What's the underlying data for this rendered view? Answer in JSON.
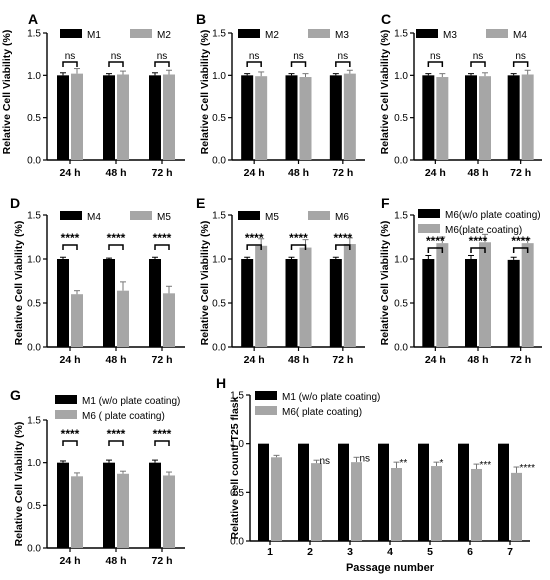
{
  "colors": {
    "black_bar": "#000000",
    "gray_bar": "#a6a6a6",
    "axis": "#000000"
  },
  "chart_data": [
    {
      "panel": "A",
      "type": "bar",
      "categories": [
        "24 h",
        "48 h",
        "72 h"
      ],
      "ylabel": "Relative Cell Viability (%)",
      "ylim": [
        0,
        1.5
      ],
      "yticks": [
        "0.0",
        "0.5",
        "1.0",
        "1.5"
      ],
      "series": [
        {
          "name": "M1",
          "color": "#000000",
          "values": [
            1.0,
            1.0,
            1.0
          ],
          "errors": [
            0.03,
            0.02,
            0.03
          ]
        },
        {
          "name": "M2",
          "color": "#a6a6a6",
          "values": [
            1.02,
            1.01,
            1.01
          ],
          "errors": [
            0.06,
            0.04,
            0.05
          ]
        }
      ],
      "significance": [
        "ns",
        "ns",
        "ns"
      ],
      "legend": "top"
    },
    {
      "panel": "B",
      "type": "bar",
      "categories": [
        "24 h",
        "48 h",
        "72 h"
      ],
      "ylabel": "Relative Cell Viability (%)",
      "ylim": [
        0,
        1.5
      ],
      "yticks": [
        "0.0",
        "0.5",
        "1.0",
        "1.5"
      ],
      "series": [
        {
          "name": "M2",
          "color": "#000000",
          "values": [
            1.0,
            1.0,
            1.0
          ],
          "errors": [
            0.02,
            0.02,
            0.02
          ]
        },
        {
          "name": "M3",
          "color": "#a6a6a6",
          "values": [
            0.99,
            0.98,
            1.02
          ],
          "errors": [
            0.05,
            0.04,
            0.04
          ]
        }
      ],
      "significance": [
        "ns",
        "ns",
        "ns"
      ],
      "legend": "top"
    },
    {
      "panel": "C",
      "type": "bar",
      "categories": [
        "24 h",
        "48 h",
        "72 h"
      ],
      "ylabel": "Relative Cell Viability (%)",
      "ylim": [
        0,
        1.5
      ],
      "yticks": [
        "0.0",
        "0.5",
        "1.0",
        "1.5"
      ],
      "series": [
        {
          "name": "M3",
          "color": "#000000",
          "values": [
            1.0,
            1.0,
            1.0
          ],
          "errors": [
            0.02,
            0.02,
            0.02
          ]
        },
        {
          "name": "M4",
          "color": "#a6a6a6",
          "values": [
            0.98,
            0.99,
            1.01
          ],
          "errors": [
            0.04,
            0.04,
            0.05
          ]
        }
      ],
      "significance": [
        "ns",
        "ns",
        "ns"
      ],
      "legend": "top"
    },
    {
      "panel": "D",
      "type": "bar",
      "categories": [
        "24 h",
        "48 h",
        "72 h"
      ],
      "ylabel": "Relative Cell Viability (%)",
      "ylim": [
        0,
        1.5
      ],
      "yticks": [
        "0.0",
        "0.5",
        "1.0",
        "1.5"
      ],
      "series": [
        {
          "name": "M4",
          "color": "#000000",
          "values": [
            1.0,
            1.0,
            1.0
          ],
          "errors": [
            0.02,
            0.01,
            0.02
          ]
        },
        {
          "name": "M5",
          "color": "#a6a6a6",
          "values": [
            0.6,
            0.64,
            0.61
          ],
          "errors": [
            0.04,
            0.1,
            0.08
          ]
        }
      ],
      "significance": [
        "****",
        "****",
        "****"
      ],
      "legend": "top"
    },
    {
      "panel": "E",
      "type": "bar",
      "categories": [
        "24 h",
        "48 h",
        "72 h"
      ],
      "ylabel": "Relative Cell Viability (%)",
      "ylim": [
        0,
        1.5
      ],
      "yticks": [
        "0.0",
        "0.5",
        "1.0",
        "1.5"
      ],
      "series": [
        {
          "name": "M5",
          "color": "#000000",
          "values": [
            1.0,
            1.0,
            1.0
          ],
          "errors": [
            0.02,
            0.02,
            0.02
          ]
        },
        {
          "name": "M6",
          "color": "#a6a6a6",
          "values": [
            1.15,
            1.13,
            1.17
          ],
          "errors": [
            0.08,
            0.09,
            0.07
          ]
        }
      ],
      "significance": [
        "****",
        "****",
        "****"
      ],
      "legend": "top"
    },
    {
      "panel": "F",
      "type": "bar",
      "categories": [
        "24 h",
        "48 h",
        "72 h"
      ],
      "ylabel": "Relative Cell Viability (%)",
      "ylim": [
        0,
        1.5
      ],
      "yticks": [
        "0.0",
        "0.5",
        "1.0",
        "1.5"
      ],
      "series": [
        {
          "name": "M6(w/o plate coating)",
          "color": "#000000",
          "values": [
            1.0,
            1.0,
            0.99
          ],
          "errors": [
            0.04,
            0.04,
            0.03
          ]
        },
        {
          "name": "M6(plate coating)",
          "color": "#a6a6a6",
          "values": [
            1.18,
            1.19,
            1.18
          ],
          "errors": [
            0.07,
            0.09,
            0.05
          ]
        }
      ],
      "significance": [
        "****",
        "****",
        "****"
      ],
      "legend": "top"
    },
    {
      "panel": "G",
      "type": "bar",
      "categories": [
        "24 h",
        "48 h",
        "72 h"
      ],
      "ylabel": "Relative Cell Viability (%)",
      "ylim": [
        0,
        1.5
      ],
      "yticks": [
        "0.0",
        "0.5",
        "1.0",
        "1.5"
      ],
      "series": [
        {
          "name": "M1 (w/o plate coating)",
          "color": "#000000",
          "values": [
            1.0,
            1.0,
            1.0
          ],
          "errors": [
            0.02,
            0.03,
            0.03
          ]
        },
        {
          "name": "M6 ( plate coating)",
          "color": "#a6a6a6",
          "values": [
            0.84,
            0.87,
            0.85
          ],
          "errors": [
            0.04,
            0.03,
            0.04
          ]
        }
      ],
      "significance": [
        "****",
        "****",
        "****"
      ],
      "legend": "top"
    },
    {
      "panel": "H",
      "type": "bar",
      "categories": [
        "1",
        "2",
        "3",
        "4",
        "5",
        "6",
        "7"
      ],
      "xlabel": "Passage number",
      "ylabel": "Relative cell count/ T25 flask",
      "ylim": [
        0,
        1.5
      ],
      "yticks": [
        "0.0",
        "0.5",
        "1.0",
        "1.5"
      ],
      "series": [
        {
          "name": "M1 (w/o plate coating)",
          "color": "#000000",
          "values": [
            1.0,
            1.0,
            1.0,
            1.0,
            1.0,
            1.0,
            1.0
          ],
          "errors": [
            0,
            0,
            0,
            0,
            0,
            0,
            0
          ]
        },
        {
          "name": "M6( plate coating)",
          "color": "#a6a6a6",
          "values": [
            0.86,
            0.8,
            0.81,
            0.75,
            0.77,
            0.74,
            0.7
          ],
          "errors": [
            0.02,
            0.03,
            0.05,
            0.06,
            0.04,
            0.05,
            0.06
          ]
        }
      ],
      "significance": [
        "",
        "ns",
        "ns",
        "**",
        "*",
        "***",
        "****"
      ],
      "legend": "top-left"
    }
  ]
}
